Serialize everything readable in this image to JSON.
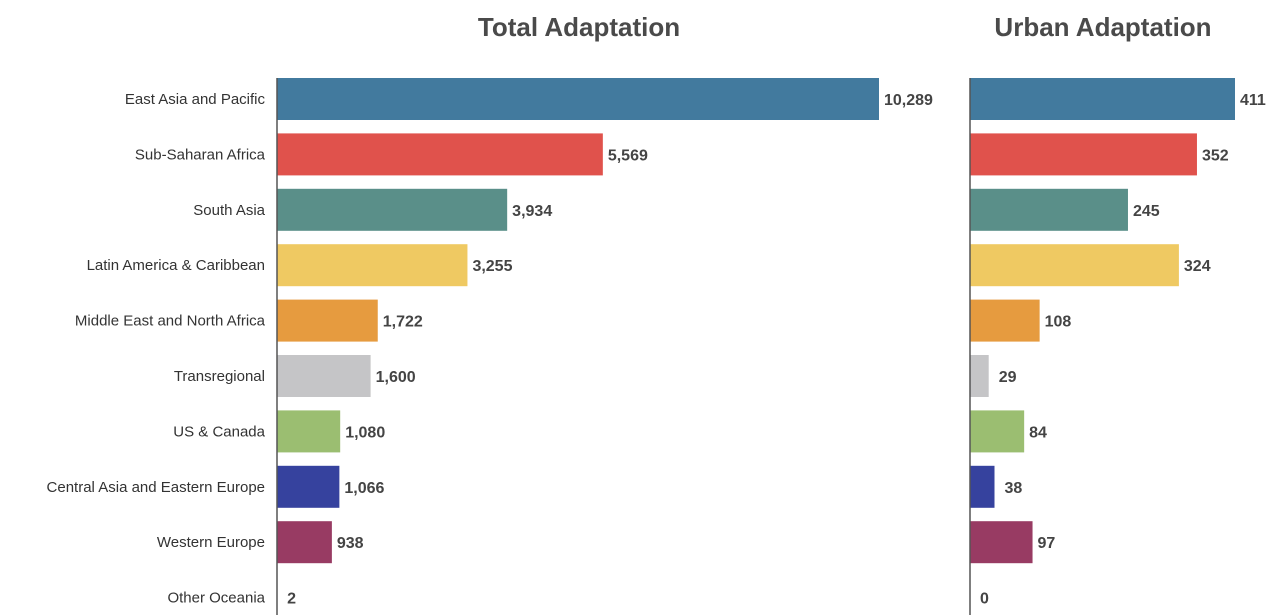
{
  "chart_data": [
    {
      "type": "bar",
      "orientation": "horizontal",
      "title": "Total Adaptation",
      "categories": [
        "East Asia and Pacific",
        "Sub-Saharan Africa",
        "South Asia",
        "Latin America & Caribbean",
        "Middle East and North Africa",
        "Transregional",
        "US & Canada",
        "Central Asia and Eastern Europe",
        "Western Europe",
        "Other Oceania"
      ],
      "values": [
        10289,
        5569,
        3934,
        3255,
        1722,
        1600,
        1080,
        1066,
        938,
        2
      ],
      "value_labels": [
        "10,289",
        "5,569",
        "3,934",
        "3,255",
        "1,722",
        "1,600",
        "1,080",
        "1,066",
        "938",
        "2"
      ],
      "xlim": [
        0,
        10289
      ],
      "grid": false,
      "legend": "none"
    },
    {
      "type": "bar",
      "orientation": "horizontal",
      "title": "Urban Adaptation",
      "categories": [
        "East Asia and Pacific",
        "Sub-Saharan Africa",
        "South Asia",
        "Latin America & Caribbean",
        "Middle East and North Africa",
        "Transregional",
        "US & Canada",
        "Central Asia and Eastern Europe",
        "Western Europe",
        "Other Oceania"
      ],
      "values": [
        411,
        352,
        245,
        324,
        108,
        29,
        84,
        38,
        97,
        0
      ],
      "value_labels": [
        "411",
        "352",
        "245",
        "324",
        "108",
        "29",
        "84",
        "38",
        "97",
        "0"
      ],
      "xlim": [
        0,
        411
      ],
      "grid": false,
      "legend": "none"
    }
  ],
  "colors": [
    "#427a9e",
    "#e0524c",
    "#5a8f89",
    "#efc962",
    "#e69b3f",
    "#c5c5c7",
    "#9bbe71",
    "#36429e",
    "#983b63",
    "#ffffff"
  ],
  "axis_color": "#555555"
}
